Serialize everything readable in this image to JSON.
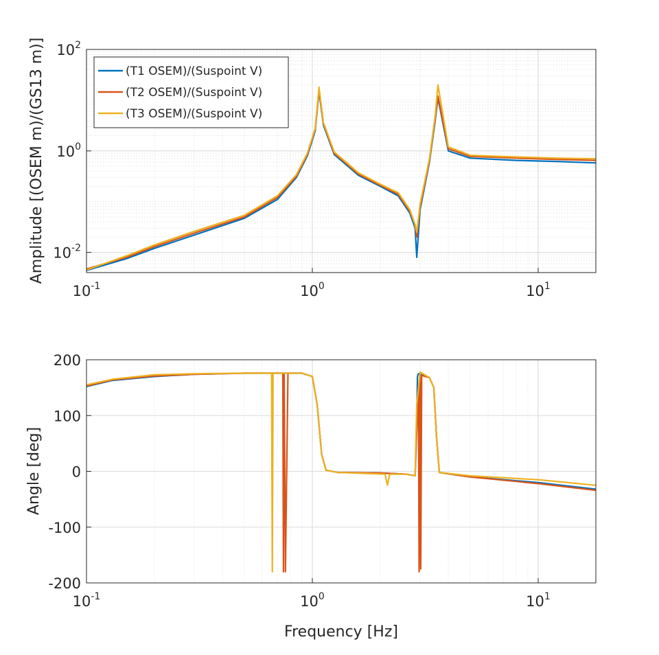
{
  "chart_data": [
    {
      "type": "line",
      "xscale": "log",
      "yscale": "log",
      "xlim": [
        0.1,
        18
      ],
      "ylim": [
        0.004,
        100
      ],
      "xlabel": "",
      "ylabel": "Amplitude [(OSEM m)/(GS13 m)]",
      "x_ticks": [
        "10^-1",
        "10^0",
        "10^1"
      ],
      "y_ticks": [
        "10^-2",
        "10^0",
        "10^2"
      ],
      "grid": true,
      "legend_position": "top-left",
      "series": [
        {
          "name": "(T1 OSEM)/(Suspoint V)",
          "color": "#0072BD",
          "x": [
            0.1,
            0.15,
            0.2,
            0.3,
            0.5,
            0.7,
            0.85,
            0.95,
            1.03,
            1.07,
            1.12,
            1.25,
            1.6,
            2.0,
            2.4,
            2.7,
            2.85,
            2.9,
            3.0,
            3.3,
            3.5,
            3.6,
            4.0,
            5.0,
            8.0,
            12.0,
            18.0
          ],
          "y": [
            0.0044,
            0.0075,
            0.012,
            0.022,
            0.047,
            0.11,
            0.3,
            0.8,
            2.5,
            15.0,
            3.2,
            0.85,
            0.33,
            0.2,
            0.13,
            0.06,
            0.03,
            0.008,
            0.07,
            0.6,
            4.0,
            11.0,
            1.0,
            0.72,
            0.65,
            0.62,
            0.58
          ]
        },
        {
          "name": "(T2 OSEM)/(Suspoint V)",
          "color": "#D95319",
          "x": [
            0.1,
            0.15,
            0.2,
            0.3,
            0.5,
            0.7,
            0.85,
            0.95,
            1.03,
            1.07,
            1.12,
            1.25,
            1.6,
            2.0,
            2.4,
            2.7,
            2.85,
            2.9,
            3.0,
            3.3,
            3.5,
            3.6,
            4.0,
            5.0,
            8.0,
            12.0,
            18.0
          ],
          "y": [
            0.0047,
            0.008,
            0.013,
            0.024,
            0.05,
            0.12,
            0.32,
            0.85,
            2.7,
            16.0,
            3.4,
            0.9,
            0.35,
            0.21,
            0.14,
            0.065,
            0.035,
            0.02,
            0.08,
            0.65,
            4.5,
            12.0,
            1.1,
            0.78,
            0.72,
            0.68,
            0.65
          ]
        },
        {
          "name": "(T3 OSEM)/(Suspoint V)",
          "color": "#EDB120",
          "x": [
            0.1,
            0.15,
            0.2,
            0.3,
            0.5,
            0.7,
            0.85,
            0.95,
            1.03,
            1.07,
            1.12,
            1.25,
            1.6,
            2.0,
            2.4,
            2.7,
            2.85,
            2.9,
            3.0,
            3.3,
            3.5,
            3.6,
            4.0,
            5.0,
            8.0,
            12.0,
            18.0
          ],
          "y": [
            0.0045,
            0.0085,
            0.014,
            0.026,
            0.054,
            0.13,
            0.34,
            0.9,
            2.8,
            18.0,
            3.6,
            0.95,
            0.37,
            0.22,
            0.15,
            0.07,
            0.035,
            0.025,
            0.09,
            0.7,
            5.0,
            20.0,
            1.2,
            0.82,
            0.76,
            0.72,
            0.7
          ]
        }
      ]
    },
    {
      "type": "line",
      "xscale": "log",
      "yscale": "linear",
      "xlim": [
        0.1,
        18
      ],
      "ylim": [
        -200,
        200
      ],
      "xlabel": "Frequency [Hz]",
      "ylabel": "Angle [deg]",
      "x_ticks": [
        "10^-1",
        "10^0",
        "10^1"
      ],
      "y_ticks": [
        "200",
        "100",
        "0",
        "-100",
        "-200"
      ],
      "grid": true,
      "series": [
        {
          "color": "#0072BD",
          "x": [
            0.1,
            0.13,
            0.2,
            0.3,
            0.5,
            0.9,
            1.0,
            1.05,
            1.1,
            1.15,
            1.3,
            2.0,
            2.6,
            2.85,
            2.9,
            2.92,
            2.95,
            3.1,
            3.3,
            3.45,
            3.55,
            3.65,
            5.0,
            10.0,
            18.0
          ],
          "y": [
            152,
            163,
            170,
            174,
            176,
            176,
            170,
            120,
            30,
            2,
            -2,
            -3,
            -5,
            -8,
            80,
            170,
            175,
            172,
            168,
            150,
            60,
            -2,
            -10,
            -20,
            -32
          ]
        },
        {
          "color": "#D95319",
          "x": [
            0.1,
            0.13,
            0.2,
            0.3,
            0.5,
            0.7,
            0.74,
            0.745,
            0.75,
            0.76,
            0.78,
            0.9,
            1.0,
            1.05,
            1.1,
            1.15,
            1.3,
            2.0,
            2.6,
            2.85,
            2.95,
            2.97,
            3.0,
            3.02,
            3.05,
            3.3,
            3.45,
            3.55,
            3.65,
            5.0,
            10.0,
            18.0
          ],
          "y": [
            153,
            164,
            171,
            174,
            176,
            176,
            176,
            -180,
            176,
            -180,
            176,
            176,
            170,
            120,
            30,
            2,
            -2,
            -3,
            -5,
            -8,
            150,
            -180,
            175,
            -175,
            172,
            168,
            150,
            60,
            -2,
            -10,
            -22,
            -34
          ]
        },
        {
          "color": "#EDB120",
          "x": [
            0.1,
            0.13,
            0.2,
            0.3,
            0.5,
            0.65,
            0.66,
            0.665,
            0.67,
            0.9,
            1.0,
            1.05,
            1.1,
            1.15,
            1.3,
            2.1,
            2.15,
            2.2,
            2.6,
            2.85,
            2.9,
            3.0,
            3.3,
            3.45,
            3.55,
            3.65,
            5.0,
            10.0,
            18.0
          ],
          "y": [
            155,
            165,
            173,
            175,
            176,
            176,
            176,
            -180,
            176,
            176,
            170,
            120,
            30,
            2,
            -2,
            -5,
            -25,
            -5,
            -5,
            -8,
            120,
            178,
            168,
            150,
            60,
            -2,
            -8,
            -15,
            -25
          ]
        }
      ]
    }
  ]
}
